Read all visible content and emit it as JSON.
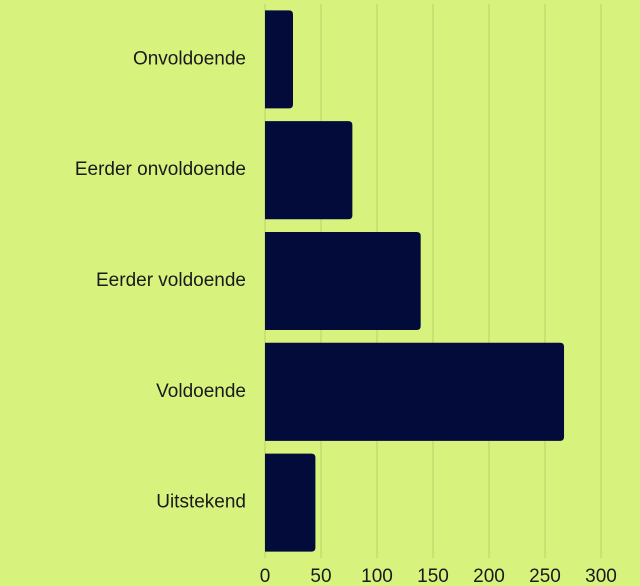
{
  "chart_data": {
    "type": "hbar",
    "categories": [
      "Onvoldoende",
      "Eerder onvoldoende",
      "Eerder voldoende",
      "Voldoende",
      "Uitstekend"
    ],
    "values": [
      25,
      78,
      139,
      267,
      45
    ],
    "color": "#020b3a",
    "xlim": [
      0,
      300
    ],
    "xticks": [
      0,
      50,
      100,
      150,
      200,
      250,
      300
    ],
    "grid": true
  }
}
